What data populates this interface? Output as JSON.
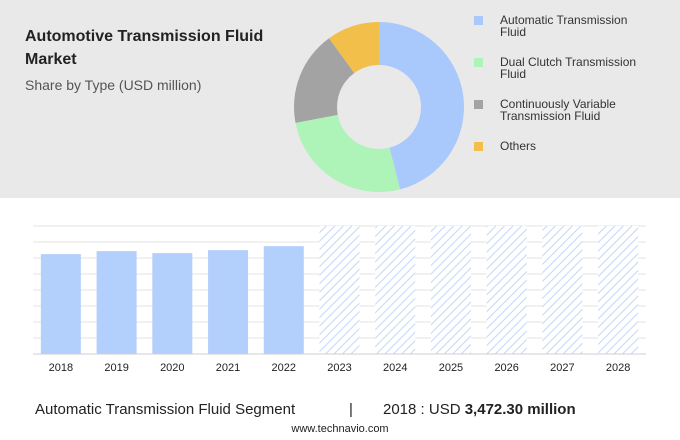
{
  "chart_data": [
    {
      "type": "donut",
      "title": "Automotive Transmission Fluid Market",
      "subtitle": "Share by Type (USD million)",
      "categories": [
        "Automatic Transmission Fluid",
        "Dual Clutch Transmission Fluid",
        "Continuously Variable Transmission Fluid",
        "Others"
      ],
      "values": [
        46,
        26,
        18,
        10
      ],
      "colors": [
        "#a9c8fb",
        "#aef3b8",
        "#a3a3a3",
        "#f2c04a"
      ]
    },
    {
      "type": "bar",
      "categories": [
        "2018",
        "2019",
        "2020",
        "2021",
        "2022",
        "2023",
        "2024",
        "2025",
        "2026",
        "2027",
        "2028"
      ],
      "values": [
        3472.3,
        3576,
        3507,
        3611,
        3750,
        null,
        null,
        null,
        null,
        null,
        null
      ],
      "color": "#b3cffb",
      "ylim": [
        0,
        4450
      ],
      "grid": true
    }
  ],
  "footer": {
    "segment": "Automatic Transmission Fluid Segment",
    "separator": "|",
    "year_unit": "2018 : USD",
    "value_label": "3,472.30 million",
    "source": "www.technavio.com"
  }
}
